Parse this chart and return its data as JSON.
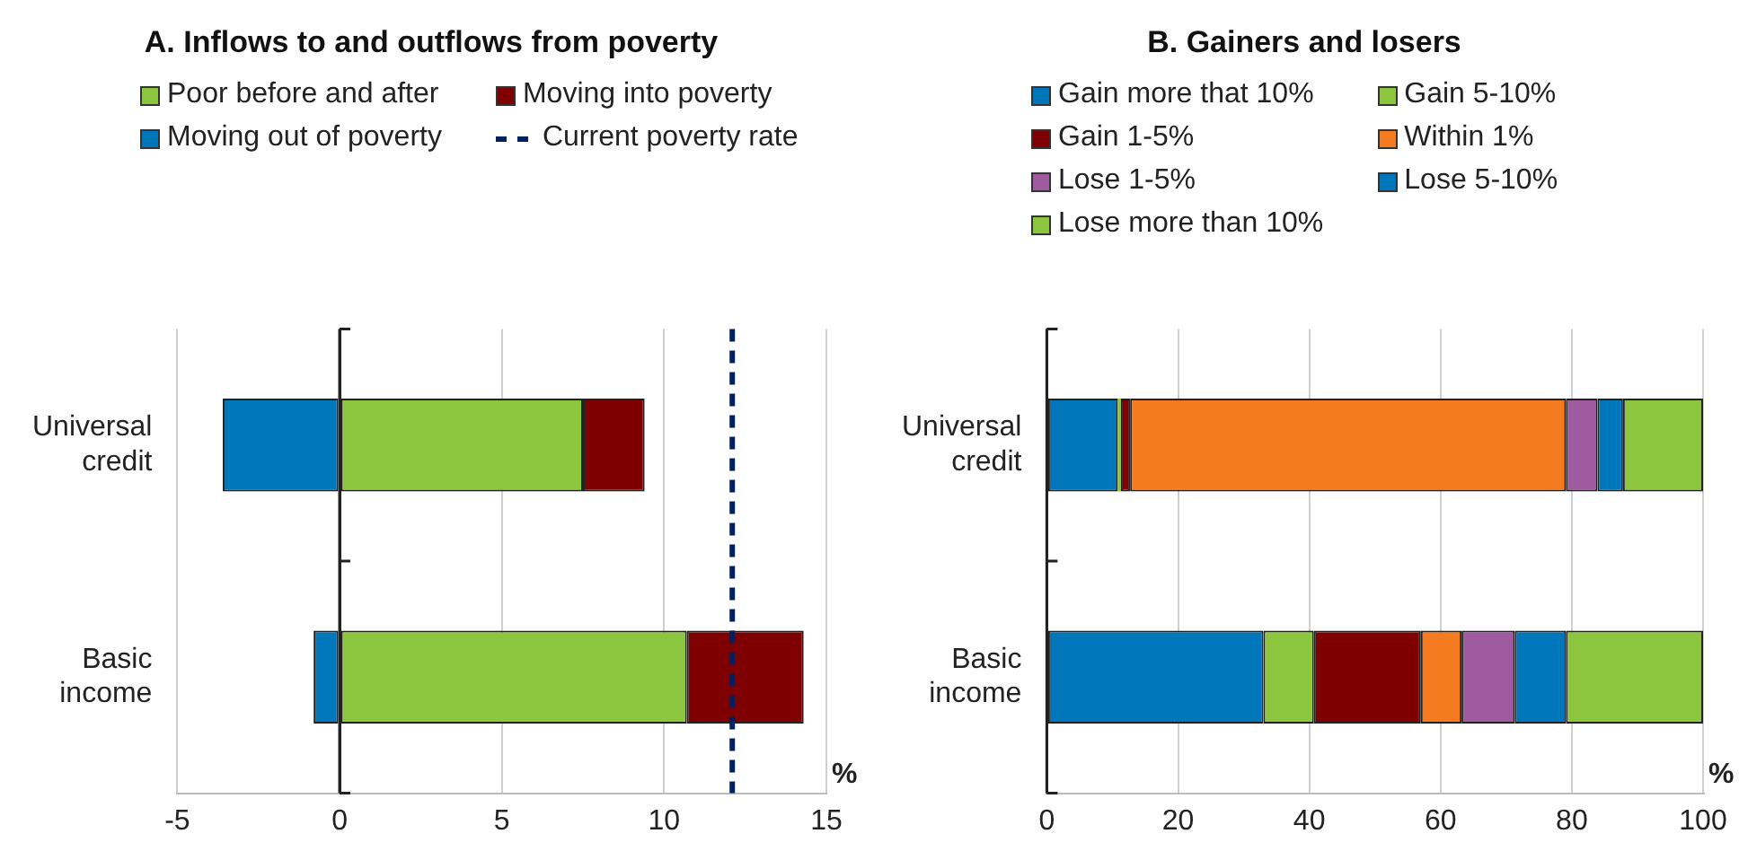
{
  "chart_data": [
    {
      "type": "bar",
      "title": "A. Inflows to and outflows from poverty",
      "xlabel": "%",
      "orientation": "horizontal",
      "stacked": true,
      "categories": [
        "Universal credit",
        "Basic income"
      ],
      "series": [
        {
          "name": "Poor before and after",
          "color": "#8cc63f",
          "values": [
            7.5,
            10.7
          ]
        },
        {
          "name": "Moving into poverty",
          "color": "#7f0000",
          "values": [
            1.9,
            3.6
          ]
        },
        {
          "name": "Moving out of poverty",
          "color": "#0077bb",
          "values": [
            -3.6,
            -0.8
          ]
        }
      ],
      "ref_lines": [
        {
          "axis": "x",
          "value": 12.1,
          "label": "Current poverty rate",
          "color": "#002060",
          "line_style": "dashed"
        }
      ],
      "xlim": [
        -5,
        15
      ],
      "xticks": [
        -5,
        0,
        5,
        10,
        15
      ],
      "grid": "x",
      "legend": "top"
    },
    {
      "type": "bar",
      "title": "B. Gainers and losers",
      "xlabel": "%",
      "orientation": "horizontal",
      "stacked": true,
      "categories": [
        "Universal credit",
        "Basic income"
      ],
      "series": [
        {
          "name": "Gain more that 10%",
          "color": "#0077bb",
          "values": [
            10.8,
            33.0
          ]
        },
        {
          "name": "Gain 5-10%",
          "color": "#8cc63f",
          "values": [
            0.5,
            7.7
          ]
        },
        {
          "name": "Gain 1-5%",
          "color": "#7f0000",
          "values": [
            1.4,
            16.3
          ]
        },
        {
          "name": "Within 1%",
          "color": "#f47b20",
          "values": [
            66.4,
            6.2
          ]
        },
        {
          "name": "Lose 1-5%",
          "color": "#a05aa0",
          "values": [
            4.8,
            8.1
          ]
        },
        {
          "name": "Lose 5-10%",
          "color": "#0077bb",
          "values": [
            3.9,
            7.8
          ]
        },
        {
          "name": "Lose more than 10%",
          "color": "#8cc63f",
          "values": [
            12.2,
            20.9
          ]
        }
      ],
      "xlim": [
        0,
        100
      ],
      "xticks": [
        0,
        20,
        40,
        60,
        80,
        100
      ],
      "grid": "x",
      "legend": "top"
    }
  ]
}
